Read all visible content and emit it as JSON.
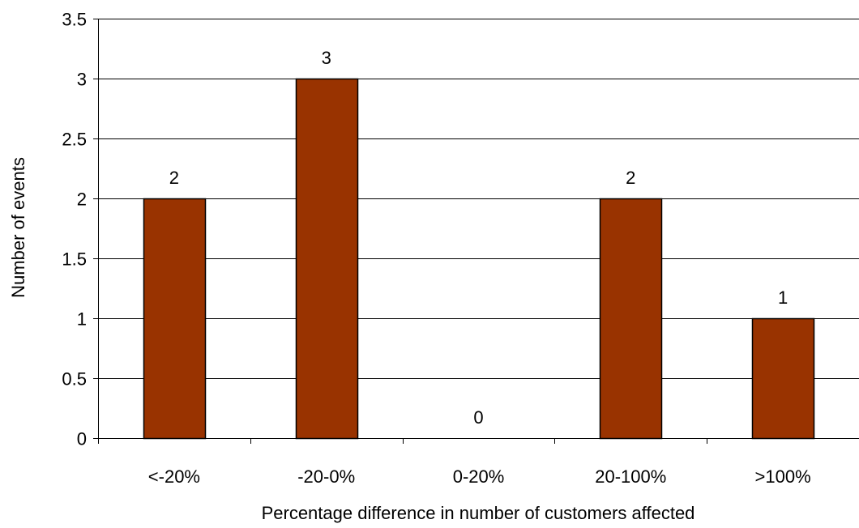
{
  "chart_data": {
    "type": "bar",
    "title": "",
    "xlabel": "Percentage difference in number of customers affected",
    "ylabel": "Number of events",
    "categories": [
      "<-20%",
      "-20-0%",
      "0-20%",
      "20-100%",
      ">100%"
    ],
    "values": [
      2,
      3,
      0,
      2,
      1
    ],
    "data_labels": [
      "2",
      "3",
      "0",
      "2",
      "1"
    ],
    "ylim": [
      0,
      3.5
    ],
    "yticks": [
      0,
      0.5,
      1,
      1.5,
      2,
      2.5,
      3,
      3.5
    ],
    "ytick_labels": [
      "0",
      "0.5",
      "1",
      "1.5",
      "2",
      "2.5",
      "3",
      "3.5"
    ],
    "grid": true,
    "legend": "none",
    "colors": {
      "bar_fill": "#993300",
      "bar_stroke": "#000000",
      "grid": "#000000",
      "axis": "#000000"
    }
  }
}
